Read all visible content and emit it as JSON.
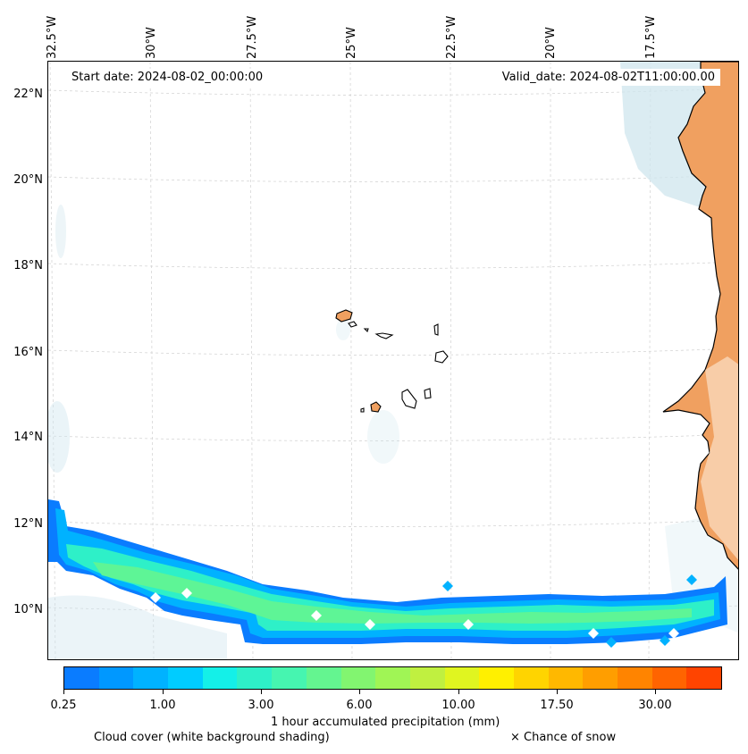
{
  "map": {
    "start_date_label": "Start date: 2024-08-02_00:00:00",
    "valid_date_label": "Valid_date: 2024-08-02T11:00:00.00",
    "longitude_labels": [
      "32.5°W",
      "30°W",
      "27.5°W",
      "25°W",
      "22.5°W",
      "20°W",
      "17.5°W"
    ],
    "latitude_labels": [
      "22°N",
      "20°N",
      "18°N",
      "16°N",
      "14°N",
      "12°N",
      "10°N"
    ],
    "region": "Cape Verde islands and West African coast",
    "colors": {
      "land": "#f0a060",
      "cloud": "#cfe6ee",
      "coastline": "#000000",
      "gridline": "#cccccc"
    }
  },
  "colorbar": {
    "title": "1 hour accumulated precipitation (mm)",
    "tick_labels": [
      "0.25",
      "1.00",
      "3.00",
      "6.00",
      "10.00",
      "17.50",
      "30.00"
    ],
    "colors": [
      "#0a7cff",
      "#0098ff",
      "#00b2ff",
      "#00ccff",
      "#14f0e8",
      "#2ef0c8",
      "#46f5b0",
      "#64f590",
      "#82f570",
      "#a0f555",
      "#c0f040",
      "#e0f520",
      "#fff000",
      "#ffd400",
      "#ffb800",
      "#ff9e00",
      "#ff8400",
      "#ff6400",
      "#ff4400"
    ]
  },
  "legend": {
    "cloud_cover": "Cloud cover (white background shading)",
    "snow": "× Chance of snow"
  }
}
